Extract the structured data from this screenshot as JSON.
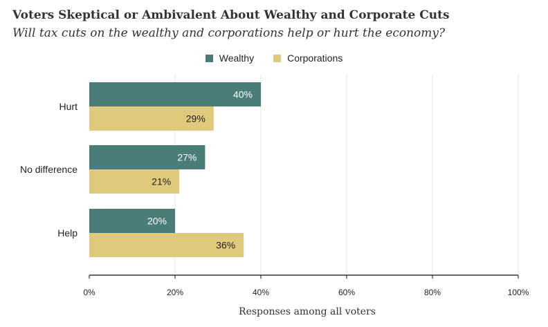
{
  "chart_data": {
    "type": "bar",
    "orientation": "horizontal",
    "title": "Voters Skeptical or Ambivalent About Wealthy and Corporate Cuts",
    "subtitle": "Will tax cuts on the wealthy and corporations help or hurt the economy?",
    "xlabel": "Responses among all voters",
    "categories": [
      "Hurt",
      "No difference",
      "Help"
    ],
    "series": [
      {
        "name": "Wealthy",
        "values": [
          40,
          27,
          20
        ],
        "color": "#4a7d78",
        "label_color": "#ffffff"
      },
      {
        "name": "Corporations",
        "values": [
          29,
          21,
          36
        ],
        "color": "#dfc97c",
        "label_color": "#222222"
      }
    ],
    "xlim": [
      0,
      100
    ],
    "ticks": [
      0,
      20,
      40,
      60,
      80,
      100
    ],
    "tick_suffix": "%",
    "value_suffix": "%",
    "grid": true,
    "legend_position": "top-center"
  }
}
